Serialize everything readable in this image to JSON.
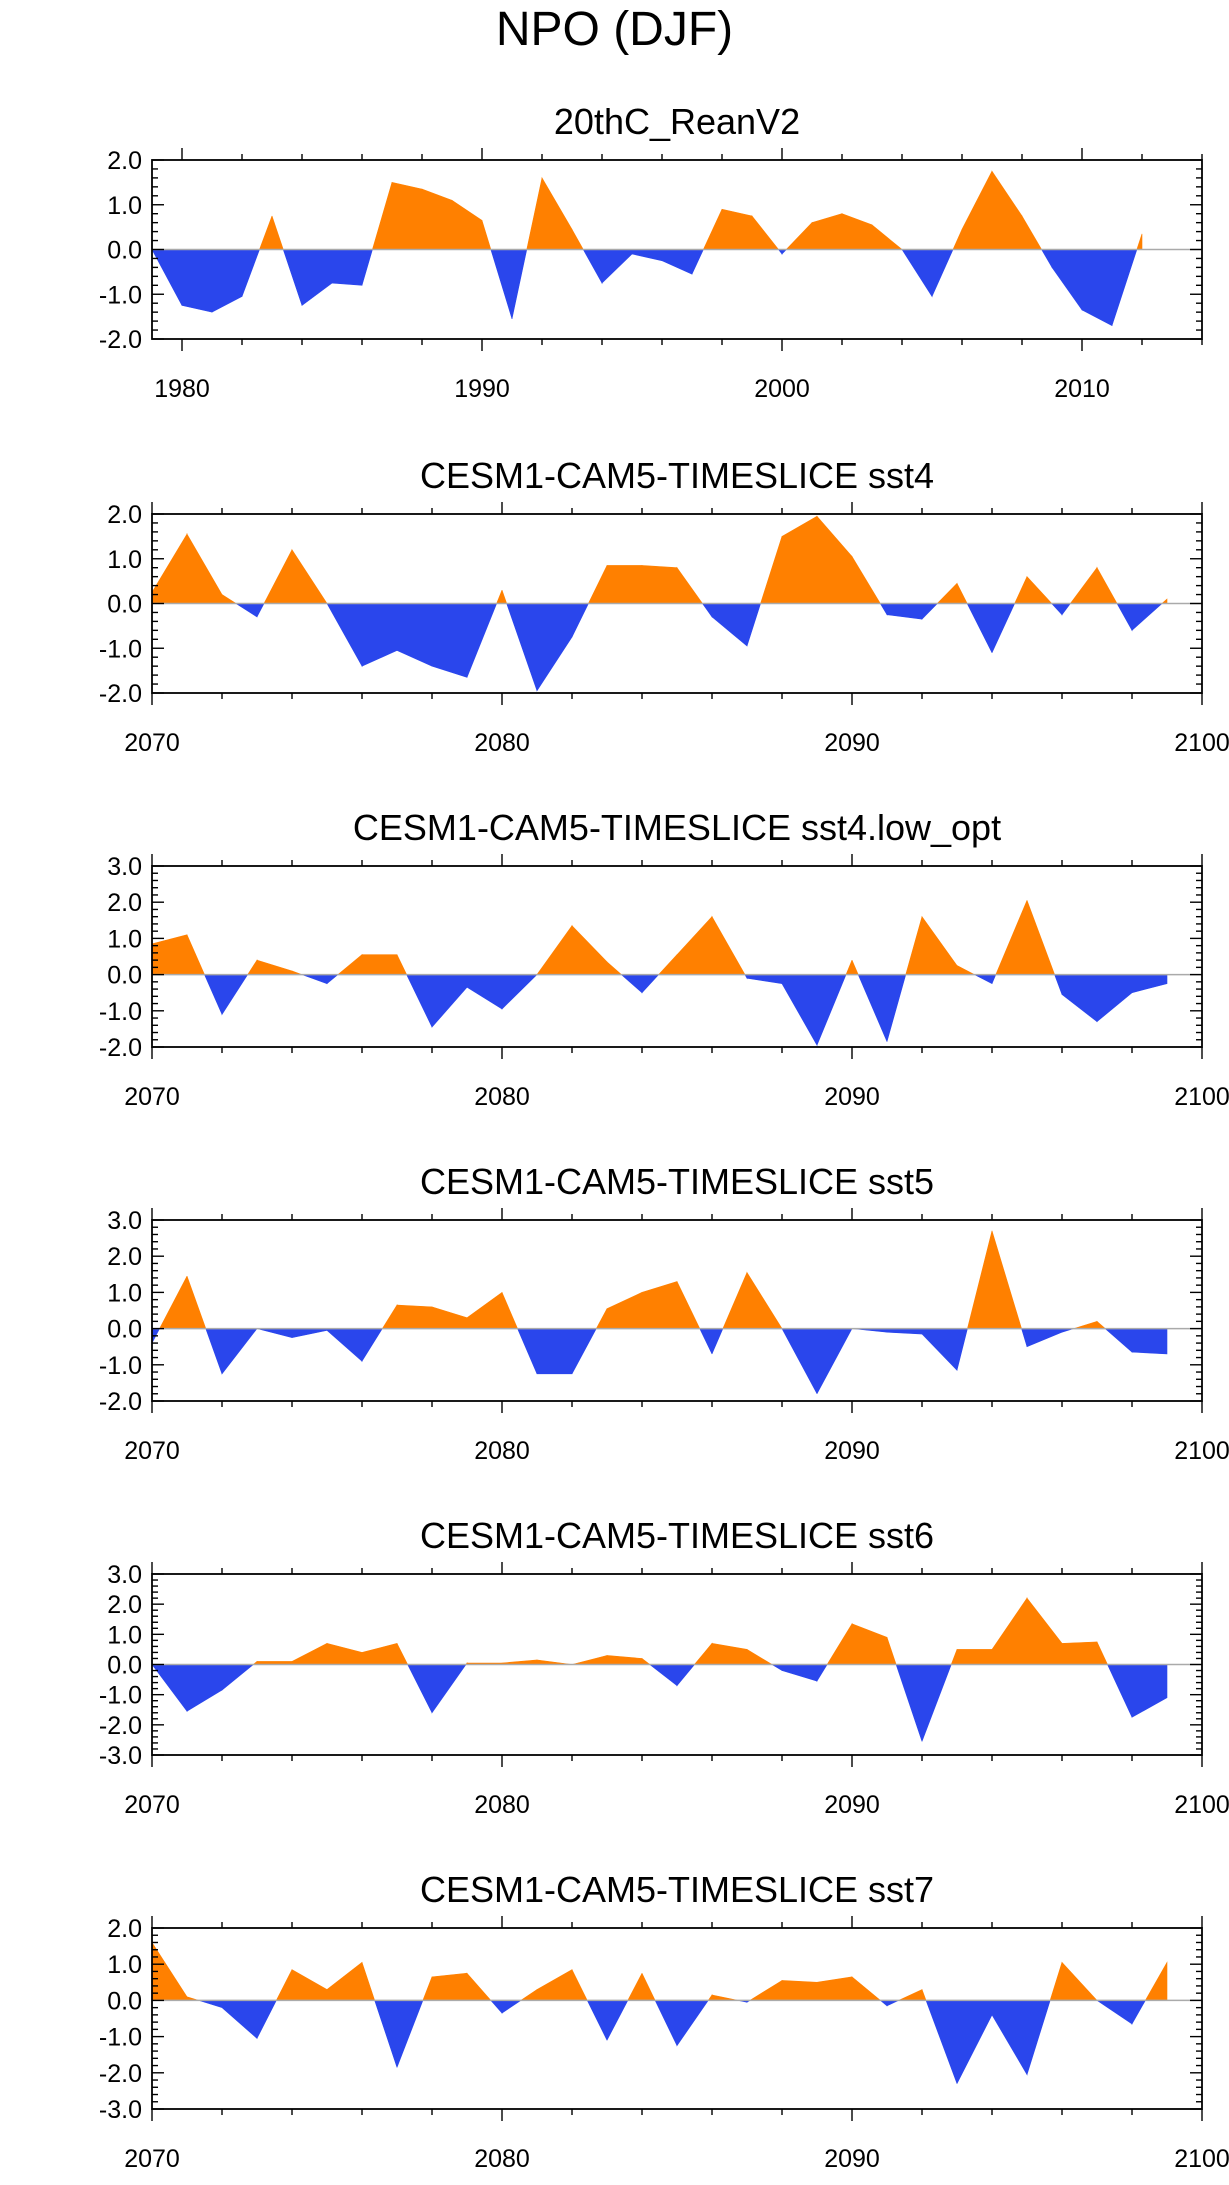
{
  "title": "NPO (DJF)",
  "colors": {
    "positive": "#FF8000",
    "negative": "#2A46EC",
    "zero_line": "#AAAAAA",
    "frame": "#000000"
  },
  "chart_data": [
    {
      "type": "area",
      "title": "20thC_ReanV2",
      "x_start": 1979,
      "xlim": [
        1979,
        2014
      ],
      "x_ticks": [
        1980,
        1990,
        2000,
        2010
      ],
      "x_tick_labels": [
        "1980",
        "1990",
        "2000",
        "2010"
      ],
      "ylim": [
        -2.0,
        2.0
      ],
      "y_ticks": [
        "2.0",
        "1.0",
        "0.0",
        "-1.0",
        "-2.0"
      ],
      "values": [
        0.0,
        -1.25,
        -1.4,
        -1.05,
        0.75,
        -1.25,
        -0.75,
        -0.8,
        1.5,
        1.35,
        1.1,
        0.65,
        -1.55,
        1.6,
        0.45,
        -0.75,
        -0.1,
        -0.25,
        -0.55,
        0.9,
        0.75,
        -0.1,
        0.6,
        0.8,
        0.55,
        0.0,
        -1.05,
        0.45,
        1.75,
        0.75,
        -0.4,
        -1.35,
        -1.7,
        0.35
      ]
    },
    {
      "type": "area",
      "title": "CESM1-CAM5-TIMESLICE sst4",
      "x_start": 2070,
      "xlim": [
        2070,
        2100
      ],
      "x_ticks": [
        2070,
        2080,
        2090,
        2100
      ],
      "x_tick_labels": [
        "2070",
        "2080",
        "2090",
        "2100"
      ],
      "ylim": [
        -2.0,
        2.0
      ],
      "y_ticks": [
        "2.0",
        "1.0",
        "0.0",
        "-1.0",
        "-2.0"
      ],
      "values": [
        0.25,
        1.55,
        0.2,
        -0.3,
        1.2,
        0.0,
        -1.4,
        -1.05,
        -1.4,
        -1.65,
        0.3,
        -1.95,
        -0.75,
        0.85,
        0.85,
        0.8,
        -0.3,
        -0.95,
        1.5,
        1.95,
        1.05,
        -0.25,
        -0.35,
        0.45,
        -1.1,
        0.6,
        -0.25,
        0.8,
        -0.6,
        0.1
      ]
    },
    {
      "type": "area",
      "title": "CESM1-CAM5-TIMESLICE sst4.low_opt",
      "x_start": 2070,
      "xlim": [
        2070,
        2100
      ],
      "x_ticks": [
        2070,
        2080,
        2090,
        2100
      ],
      "x_tick_labels": [
        "2070",
        "2080",
        "2090",
        "2100"
      ],
      "ylim": [
        -2.0,
        3.0
      ],
      "y_ticks": [
        "3.0",
        "2.0",
        "1.0",
        "0.0",
        "-1.0",
        "-2.0"
      ],
      "values": [
        0.85,
        1.1,
        -1.1,
        0.4,
        0.1,
        -0.25,
        0.55,
        0.55,
        -1.45,
        -0.35,
        -0.95,
        0.0,
        1.35,
        0.35,
        -0.5,
        0.55,
        1.6,
        -0.1,
        -0.25,
        -1.95,
        0.4,
        -1.85,
        1.6,
        0.25,
        -0.25,
        2.05,
        -0.55,
        -1.3,
        -0.5,
        -0.25
      ]
    },
    {
      "type": "area",
      "title": "CESM1-CAM5-TIMESLICE sst5",
      "x_start": 2070,
      "xlim": [
        2070,
        2100
      ],
      "x_ticks": [
        2070,
        2080,
        2090,
        2100
      ],
      "x_tick_labels": [
        "2070",
        "2080",
        "2090",
        "2100"
      ],
      "ylim": [
        -2.0,
        3.0
      ],
      "y_ticks": [
        "3.0",
        "2.0",
        "1.0",
        "0.0",
        "-1.0",
        "-2.0"
      ],
      "values": [
        -0.4,
        1.45,
        -1.25,
        0.0,
        -0.25,
        -0.05,
        -0.9,
        0.65,
        0.6,
        0.3,
        1.0,
        -1.25,
        -1.25,
        0.55,
        1.0,
        1.3,
        -0.7,
        1.55,
        0.0,
        -1.8,
        0.0,
        -0.1,
        -0.15,
        -1.15,
        2.7,
        -0.5,
        -0.1,
        0.2,
        -0.65,
        -0.7
      ]
    },
    {
      "type": "area",
      "title": "CESM1-CAM5-TIMESLICE sst6",
      "x_start": 2070,
      "xlim": [
        2070,
        2100
      ],
      "x_ticks": [
        2070,
        2080,
        2090,
        2100
      ],
      "x_tick_labels": [
        "2070",
        "2080",
        "2090",
        "2100"
      ],
      "ylim": [
        -3.0,
        3.0
      ],
      "y_ticks": [
        "3.0",
        "2.0",
        "1.0",
        "0.0",
        "-1.0",
        "-2.0",
        "-3.0"
      ],
      "values": [
        0.0,
        -1.55,
        -0.85,
        0.1,
        0.1,
        0.7,
        0.4,
        0.7,
        -1.6,
        0.05,
        0.05,
        0.15,
        0.0,
        0.3,
        0.2,
        -0.7,
        0.7,
        0.5,
        -0.2,
        -0.55,
        1.35,
        0.9,
        -2.55,
        0.5,
        0.5,
        2.2,
        0.7,
        0.75,
        -1.75,
        -1.1
      ]
    },
    {
      "type": "area",
      "title": "CESM1-CAM5-TIMESLICE sst7",
      "x_start": 2070,
      "xlim": [
        2070,
        2100
      ],
      "x_ticks": [
        2070,
        2080,
        2090,
        2100
      ],
      "x_tick_labels": [
        "2070",
        "2080",
        "2090",
        "2100"
      ],
      "ylim": [
        -3.0,
        2.0
      ],
      "y_ticks": [
        "2.0",
        "1.0",
        "0.0",
        "-1.0",
        "-2.0",
        "-3.0"
      ],
      "values": [
        1.6,
        0.1,
        -0.2,
        -1.05,
        0.85,
        0.3,
        1.05,
        -1.85,
        0.65,
        0.75,
        -0.35,
        0.3,
        0.85,
        -1.1,
        0.75,
        -1.25,
        0.15,
        -0.05,
        0.55,
        0.5,
        0.65,
        -0.15,
        0.3,
        -2.3,
        -0.4,
        -2.05,
        1.05,
        0.0,
        -0.65,
        1.05
      ]
    }
  ]
}
